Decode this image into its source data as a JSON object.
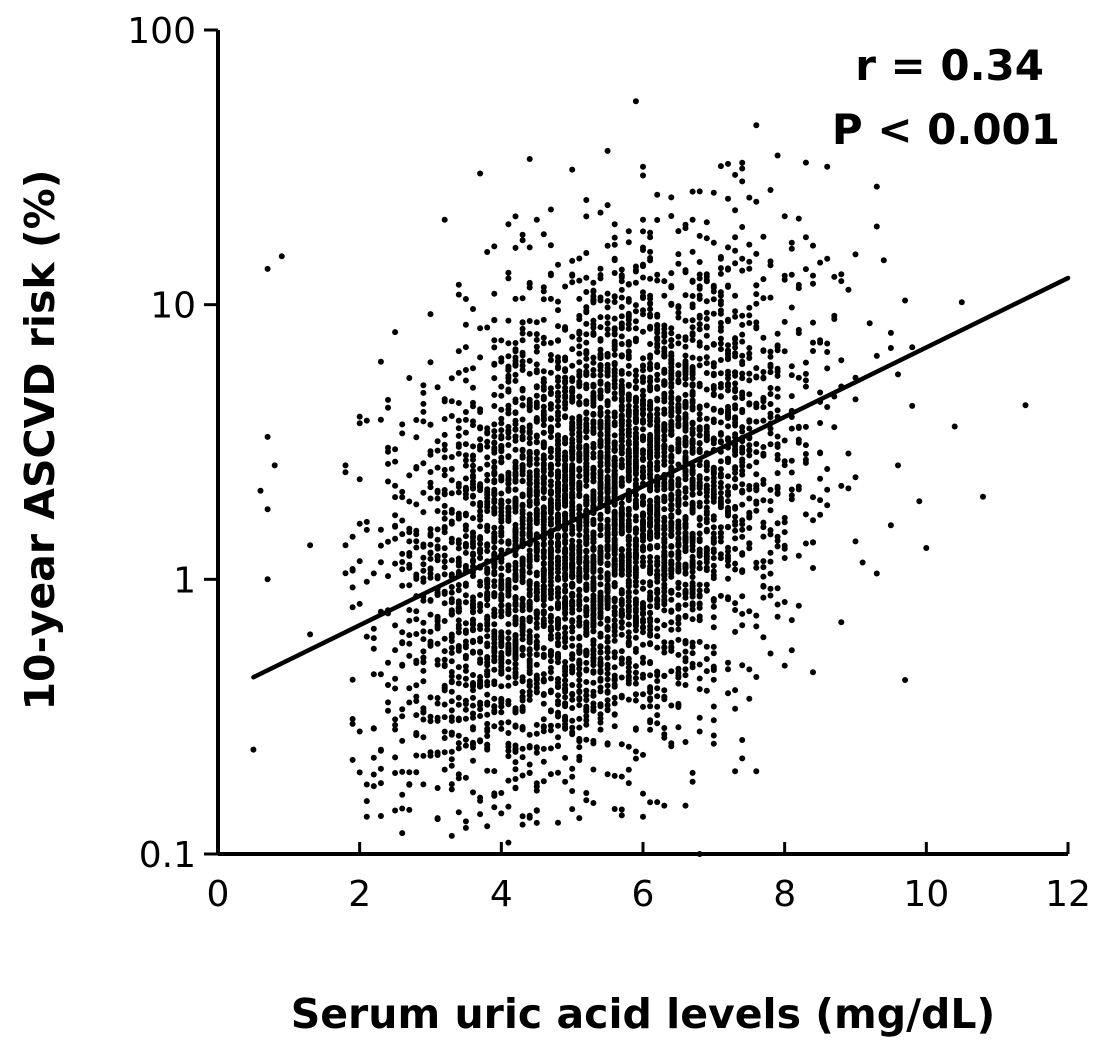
{
  "chart_data": {
    "type": "scatter",
    "title": "",
    "xlabel": "Serum uric acid levels (mg/dL)",
    "ylabel": "10-year ASCVD risk (%)",
    "xlim": [
      0,
      12
    ],
    "ylim": [
      0.1,
      100
    ],
    "y_scale": "log",
    "x_ticks": [
      0,
      2,
      4,
      6,
      8,
      10,
      12
    ],
    "x_tick_labels": [
      "0",
      "2",
      "4",
      "6",
      "8",
      "10",
      "12"
    ],
    "y_ticks": [
      0.1,
      1,
      10,
      100
    ],
    "y_tick_labels": [
      "0.1",
      "1",
      "10",
      "100"
    ],
    "grid": false,
    "annotations": [
      "r = 0.34",
      "P < 0.001"
    ],
    "regression_line": {
      "x": [
        0.5,
        12.0
      ],
      "y": [
        0.44,
        12.5
      ]
    },
    "point_color": "#000000",
    "points": [
      [
        0.5,
        0.24
      ],
      [
        0.6,
        2.1
      ],
      [
        0.7,
        13.5
      ],
      [
        0.7,
        3.3
      ],
      [
        0.7,
        1.8
      ],
      [
        0.7,
        1.0
      ],
      [
        0.8,
        2.6
      ],
      [
        0.9,
        15.0
      ],
      [
        1.3,
        1.33
      ],
      [
        1.3,
        0.63
      ],
      [
        1.8,
        1.33
      ],
      [
        1.8,
        2.6
      ],
      [
        1.9,
        0.22
      ],
      [
        1.9,
        0.31
      ],
      [
        2.0,
        3.7
      ],
      [
        5.9,
        55
      ],
      [
        7.6,
        45
      ],
      [
        10.5,
        10.2
      ],
      [
        11.4,
        4.3
      ],
      [
        10.8,
        2.0
      ],
      [
        9.7,
        0.43
      ],
      [
        6.8,
        0.1
      ],
      [
        4.1,
        0.11
      ],
      [
        7.3,
        0.2
      ],
      [
        7.4,
        0.26
      ],
      [
        7.0,
        0.27
      ],
      [
        6.3,
        0.15
      ],
      [
        6.6,
        0.15
      ],
      [
        4.8,
        0.13
      ],
      [
        9.8,
        7.0
      ],
      [
        10.0,
        1.3
      ],
      [
        9.3,
        1.05
      ],
      [
        9.6,
        2.6
      ],
      [
        8.6,
        14.7
      ],
      [
        8.0,
        21.0
      ],
      [
        10.4,
        3.6
      ]
    ],
    "cloud": {
      "count": 5200,
      "x_center": 5.3,
      "x_sd": 1.35,
      "log10_y_intercept": -0.465,
      "log10_y_slope": 0.13,
      "log10_y_sd": 0.42
    }
  }
}
